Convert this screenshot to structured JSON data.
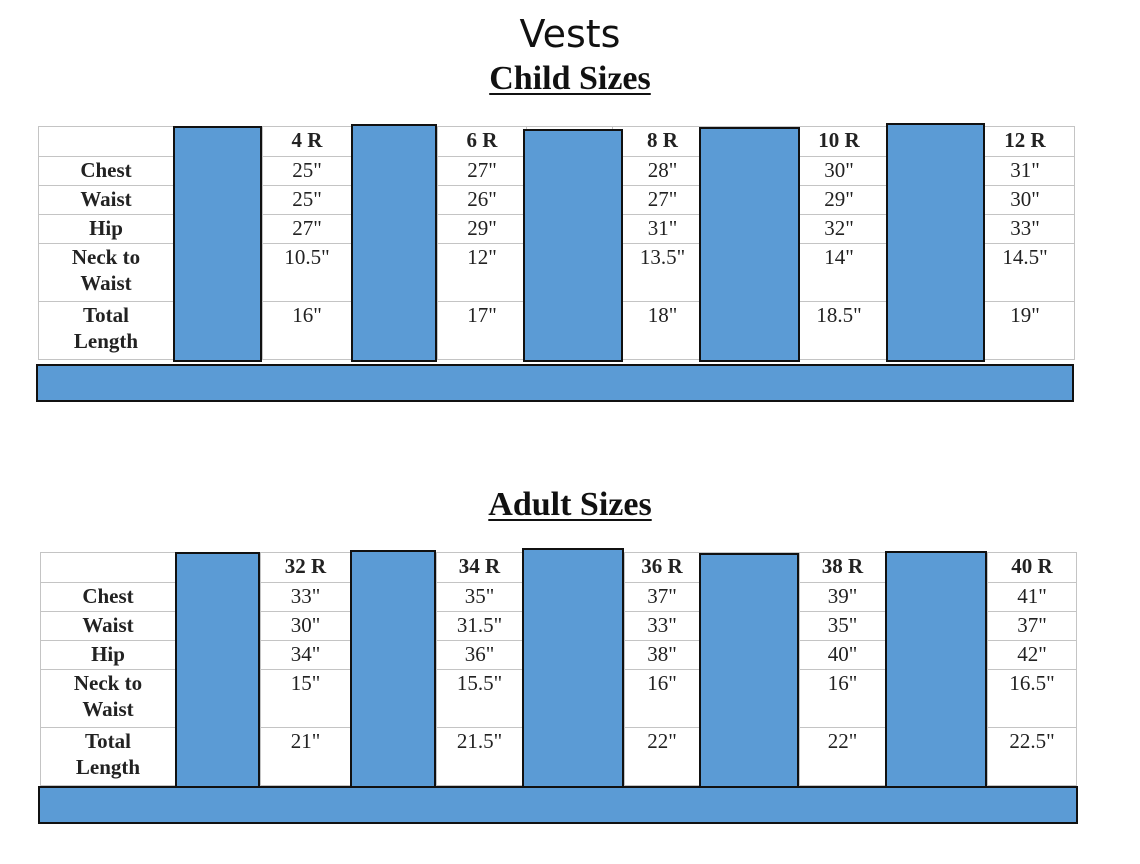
{
  "title": "Vests",
  "child": {
    "heading": "Child Sizes",
    "row_labels": {
      "chest": "Chest",
      "waist": "Waist",
      "hip": "Hip",
      "neck_a": "Neck to",
      "neck_b": "Waist",
      "total_a": "Total",
      "total_b": "Length"
    },
    "sizes": [
      {
        "size": "4 R",
        "chest": "25\"",
        "waist": "25\"",
        "hip": "27\"",
        "neck": "10.5\"",
        "total": "16\""
      },
      {
        "size": "6 R",
        "chest": "27\"",
        "waist": "26\"",
        "hip": "29\"",
        "neck": "12\"",
        "total": "17\""
      },
      {
        "size": "8 R",
        "chest": "28\"",
        "waist": "27\"",
        "hip": "31\"",
        "neck": "13.5\"",
        "total": "18\""
      },
      {
        "size": "10 R",
        "chest": "30\"",
        "waist": "29\"",
        "hip": "32\"",
        "neck": "14\"",
        "total": "18.5\""
      },
      {
        "size": "12 R",
        "chest": "31\"",
        "waist": "30\"",
        "hip": "33\"",
        "neck": "14.5\"",
        "total": "19\""
      }
    ]
  },
  "adult": {
    "heading": "Adult Sizes",
    "row_labels": {
      "chest": "Chest",
      "waist": "Waist",
      "hip": "Hip",
      "neck_a": "Neck to",
      "neck_b": "Waist",
      "total_a": "Total",
      "total_b": "Length"
    },
    "sizes": [
      {
        "size": "32 R",
        "chest": "33\"",
        "waist": "30\"",
        "hip": "34\"",
        "neck": "15\"",
        "total": "21\""
      },
      {
        "size": "34 R",
        "chest": "35\"",
        "waist": "31.5\"",
        "hip": "36\"",
        "neck": "15.5\"",
        "total": "21.5\""
      },
      {
        "size": "36 R",
        "chest": "37\"",
        "waist": "33\"",
        "hip": "38\"",
        "neck": "16\"",
        "total": "22\""
      },
      {
        "size": "38 R",
        "chest": "39\"",
        "waist": "35\"",
        "hip": "40\"",
        "neck": "16\"",
        "total": "22\""
      },
      {
        "size": "40 R",
        "chest": "41\"",
        "waist": "37\"",
        "hip": "42\"",
        "neck": "16.5\"",
        "total": "22.5\""
      }
    ]
  },
  "colors": {
    "block_fill": "#5b9bd5",
    "block_border": "#111111",
    "grid": "#c4c4c4"
  }
}
